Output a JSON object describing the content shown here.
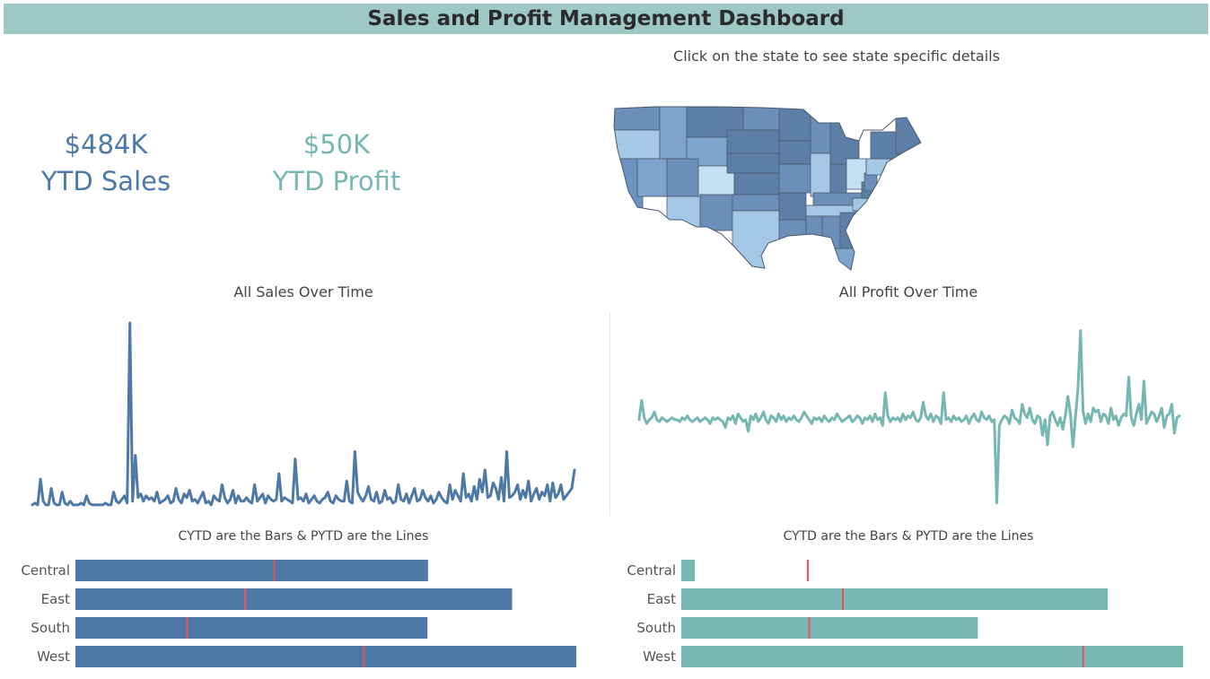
{
  "dashboard": {
    "title": "Sales and Profit Management Dashboard",
    "map_caption": "Click on the state to see state specific details"
  },
  "kpis": {
    "sales_value": "$484K",
    "sales_label": "YTD Sales",
    "profit_value": "$50K",
    "profit_label": "YTD Profit"
  },
  "colors": {
    "header": "#9dc8c4",
    "sales": "#4e79a7",
    "profit": "#76b7b2",
    "pytd_marker": "#e15759"
  },
  "chart_data": [
    {
      "type": "line",
      "title": "All Sales Over Time",
      "xlabel": "",
      "ylabel": "",
      "ylim": [
        0,
        100
      ],
      "values": [
        1,
        2,
        1,
        15,
        3,
        1,
        1,
        10,
        2,
        1,
        1,
        8,
        2,
        1,
        3,
        1,
        1,
        1,
        2,
        1,
        6,
        2,
        1,
        1,
        1,
        1,
        1,
        2,
        1,
        1,
        8,
        3,
        2,
        4,
        6,
        2,
        100,
        3,
        28,
        5,
        7,
        3,
        6,
        4,
        5,
        3,
        8,
        2,
        3,
        4,
        6,
        2,
        3,
        10,
        4,
        2,
        7,
        5,
        9,
        3,
        4,
        2,
        5,
        8,
        2,
        3,
        1,
        6,
        4,
        3,
        12,
        5,
        2,
        4,
        9,
        2,
        6,
        3,
        3,
        5,
        3,
        2,
        12,
        3,
        5,
        7,
        2,
        6,
        4,
        3,
        4,
        18,
        3,
        5,
        4,
        3,
        2,
        26,
        4,
        5,
        3,
        7,
        2,
        4,
        6,
        3,
        2,
        4,
        5,
        8,
        3,
        2,
        6,
        4,
        3,
        3,
        14,
        3,
        2,
        30,
        8,
        5,
        3,
        6,
        11,
        4,
        3,
        8,
        2,
        3,
        9,
        4,
        5,
        2,
        3,
        12,
        4,
        3,
        7,
        2,
        6,
        10,
        3,
        4,
        9,
        5,
        3,
        6,
        2,
        4,
        8,
        5,
        3,
        2,
        12,
        4,
        9,
        6,
        3,
        18,
        5,
        7,
        3,
        11,
        4,
        15,
        8,
        20,
        5,
        6,
        13,
        10,
        4,
        16,
        3,
        30,
        5,
        6,
        8,
        12,
        4,
        9,
        5,
        14,
        3,
        7,
        10,
        4,
        8,
        6,
        12,
        3,
        13,
        5,
        7,
        12,
        4,
        6,
        8,
        10,
        20
      ]
    },
    {
      "type": "line",
      "title": "All Profit Over Time",
      "xlabel": "",
      "ylabel": "",
      "ylim": [
        -45,
        50
      ],
      "values": [
        0,
        10,
        1,
        -2,
        0,
        1,
        4,
        0,
        -1,
        1,
        0,
        -1,
        0,
        1,
        0,
        0,
        -1,
        1,
        0,
        2,
        0,
        -1,
        0,
        1,
        -1,
        0,
        1,
        0,
        -2,
        1,
        0,
        1,
        0,
        -1,
        -4,
        1,
        0,
        2,
        -2,
        3,
        1,
        -1,
        0,
        -6,
        2,
        0,
        3,
        -1,
        1,
        4,
        0,
        -2,
        2,
        1,
        -1,
        3,
        0,
        2,
        -1,
        1,
        0,
        2,
        0,
        -1,
        1,
        4,
        2,
        0,
        -2,
        1,
        0,
        1,
        -1,
        2,
        0,
        -1,
        1,
        0,
        3,
        1,
        -1,
        0,
        1,
        2,
        -1,
        0,
        2,
        1,
        -2,
        1,
        0,
        2,
        -1,
        3,
        0,
        1,
        -3,
        14,
        2,
        -1,
        1,
        0,
        1,
        -1,
        3,
        0,
        2,
        1,
        4,
        0,
        -1,
        1,
        9,
        2,
        0,
        3,
        -1,
        2,
        1,
        -2,
        14,
        0,
        1,
        -1,
        2,
        0,
        1,
        -1,
        0,
        2,
        -2,
        1,
        3,
        0,
        -1,
        4,
        1,
        0,
        2,
        -1,
        0,
        -43,
        -3,
        0,
        2,
        1,
        -2,
        5,
        1,
        0,
        -2,
        8,
        3,
        1,
        6,
        0,
        -2,
        2,
        1,
        -8,
        0,
        -13,
        2,
        4,
        0,
        -3,
        1,
        -5,
        2,
        12,
        3,
        -14,
        1,
        16,
        46,
        4,
        -2,
        3,
        -1,
        6,
        4,
        5,
        -1,
        3,
        2,
        -2,
        6,
        0,
        2,
        -3,
        1,
        3,
        2,
        22,
        1,
        -3,
        3,
        8,
        0,
        20,
        -2,
        1,
        4,
        3,
        -1,
        2,
        6,
        -4,
        2,
        3,
        8,
        -7,
        1,
        2
      ]
    },
    {
      "type": "bar",
      "title": "CYTD are the Bars & PYTD are the Lines",
      "categories": [
        "Central",
        "East",
        "South",
        "West"
      ],
      "series": [
        {
          "name": "CYTD",
          "values": [
            70.4,
            87.2,
            70.3,
            100
          ]
        },
        {
          "name": "PYTD",
          "values": [
            39.7,
            33.9,
            22.3,
            57.6
          ]
        }
      ],
      "xlim": [
        0,
        100
      ]
    },
    {
      "type": "bar",
      "title": "CYTD are the Bars & PYTD are the Lines",
      "categories": [
        "Central",
        "East",
        "South",
        "West"
      ],
      "series": [
        {
          "name": "CYTD",
          "values": [
            2.7,
            85,
            59.1,
            100
          ]
        },
        {
          "name": "PYTD",
          "values": [
            25.2,
            32.2,
            25.5,
            80.1
          ]
        }
      ],
      "xlim": [
        0,
        100
      ]
    }
  ]
}
